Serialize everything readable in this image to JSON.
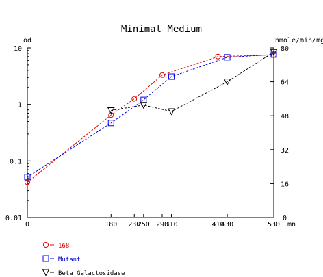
{
  "chart_data": {
    "type": "line",
    "title": "Minimal Medium",
    "y_left": {
      "label": "od",
      "scale": "log",
      "range": [
        0.01,
        10
      ],
      "ticks": [
        "0.01",
        "0.1",
        "1",
        "10"
      ]
    },
    "y_right": {
      "label": "nmole/min/mg",
      "scale": "linear",
      "range": [
        0,
        80
      ],
      "ticks": [
        "0",
        "16",
        "32",
        "48",
        "64",
        "80"
      ]
    },
    "x": {
      "unit": "mn",
      "range": [
        0,
        530
      ],
      "ticks": [
        "0",
        "180",
        "230",
        "250",
        "290",
        "310",
        "410",
        "430",
        "530"
      ]
    },
    "grid": false,
    "legend_position": "bottom-left",
    "series": [
      {
        "name": "168",
        "axis": "left",
        "marker": "circle",
        "color": "#e00000",
        "points": [
          [
            0,
            0.042
          ],
          [
            180,
            0.65
          ],
          [
            230,
            1.25
          ],
          [
            290,
            3.3
          ],
          [
            410,
            7.0
          ],
          [
            530,
            7.5
          ]
        ]
      },
      {
        "name": "Mutant",
        "axis": "left",
        "marker": "square",
        "color": "#0000e0",
        "points": [
          [
            0,
            0.052
          ],
          [
            180,
            0.47
          ],
          [
            250,
            1.2
          ],
          [
            310,
            3.1
          ],
          [
            430,
            6.8
          ],
          [
            530,
            7.6
          ]
        ]
      },
      {
        "name": "Beta Galactosidase",
        "axis": "right",
        "marker": "triangle-down",
        "color": "#000000",
        "points": [
          [
            180,
            50.5
          ],
          [
            250,
            53
          ],
          [
            310,
            50
          ],
          [
            430,
            64
          ],
          [
            530,
            78
          ]
        ]
      }
    ]
  }
}
